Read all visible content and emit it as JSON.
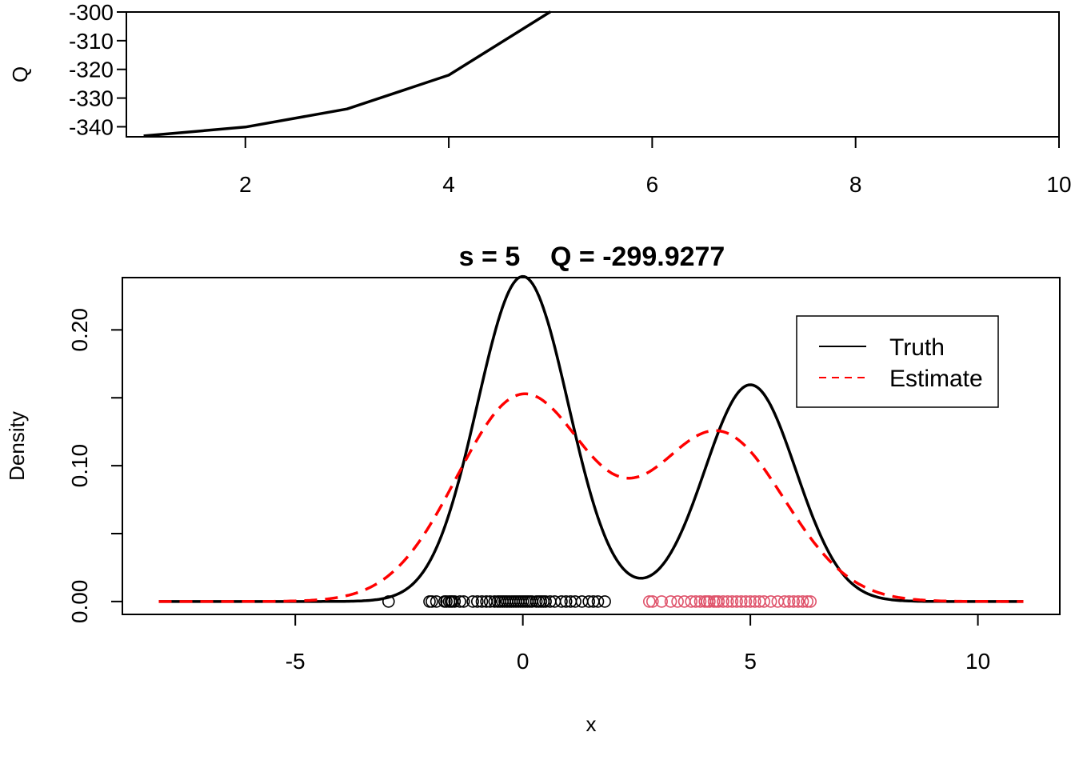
{
  "chart_data": [
    {
      "id": "q-trace",
      "type": "line",
      "title": "",
      "xlabel": "",
      "ylabel": "Q",
      "xlim": [
        0.83,
        10.0
      ],
      "ylim": [
        -343.5,
        -300.0
      ],
      "xticks": [
        2,
        4,
        6,
        8,
        10
      ],
      "yticks": [
        -340,
        -330,
        -320,
        -310,
        -300
      ],
      "x": [
        1,
        2,
        3,
        4,
        5
      ],
      "y": [
        -343.2,
        -340.1,
        -333.8,
        -322.0,
        -299.9
      ],
      "color": "#000000",
      "grid": false
    },
    {
      "id": "density",
      "type": "line",
      "title": "s = 5    Q = -299.9277",
      "xlabel": "x",
      "ylabel": "Density",
      "xlim": [
        -8.8,
        11.8
      ],
      "ylim": [
        -0.0095,
        0.2385
      ],
      "xticks": [
        -5,
        0,
        5,
        10
      ],
      "xtick_labels": [
        "-5",
        "0",
        "5",
        "10"
      ],
      "yticks": [
        0.0,
        0.05,
        0.1,
        0.15,
        0.2
      ],
      "ytick_labels": [
        "0.00",
        "",
        "0.10",
        "",
        "0.20"
      ],
      "grid": false,
      "legend_position": "top-right",
      "series": [
        {
          "name": "Truth",
          "style": "solid",
          "color": "#000000",
          "mixture": [
            {
              "weight": 0.6,
              "mean": 0.0,
              "sd": 1.0
            },
            {
              "weight": 0.4,
              "mean": 5.0,
              "sd": 1.0
            }
          ]
        },
        {
          "name": "Estimate",
          "style": "dashed",
          "color": "#ff0000",
          "mixture": [
            {
              "weight": 0.55,
              "mean": 0.0,
              "sd": 1.45
            },
            {
              "weight": 0.45,
              "mean": 4.3,
              "sd": 1.45
            }
          ]
        }
      ],
      "points": [
        {
          "group": "component-1",
          "color": "#000000",
          "y": 0.0,
          "x": [
            -2.95,
            -2.05,
            -2.0,
            -1.9,
            -1.72,
            -1.68,
            -1.62,
            -1.58,
            -1.55,
            -1.5,
            -1.38,
            -1.3,
            -1.1,
            -1.0,
            -0.9,
            -0.8,
            -0.72,
            -0.62,
            -0.55,
            -0.5,
            -0.45,
            -0.4,
            -0.35,
            -0.3,
            -0.25,
            -0.2,
            -0.15,
            -0.1,
            -0.05,
            0.0,
            0.05,
            0.1,
            0.15,
            0.2,
            0.3,
            0.35,
            0.4,
            0.45,
            0.5,
            0.6,
            0.7,
            0.85,
            0.95,
            1.05,
            1.15,
            1.3,
            1.45,
            1.55,
            1.65,
            1.8
          ]
        },
        {
          "group": "component-2",
          "color": "#df536b",
          "y": 0.0,
          "x": [
            2.78,
            2.85,
            3.05,
            3.25,
            3.4,
            3.55,
            3.7,
            3.8,
            3.9,
            4.0,
            4.05,
            4.1,
            4.2,
            4.25,
            4.3,
            4.4,
            4.5,
            4.6,
            4.7,
            4.8,
            4.9,
            5.0,
            5.1,
            5.2,
            5.3,
            5.45,
            5.6,
            5.75,
            5.85,
            5.95,
            6.05,
            6.15,
            6.25,
            6.32
          ]
        }
      ]
    }
  ]
}
